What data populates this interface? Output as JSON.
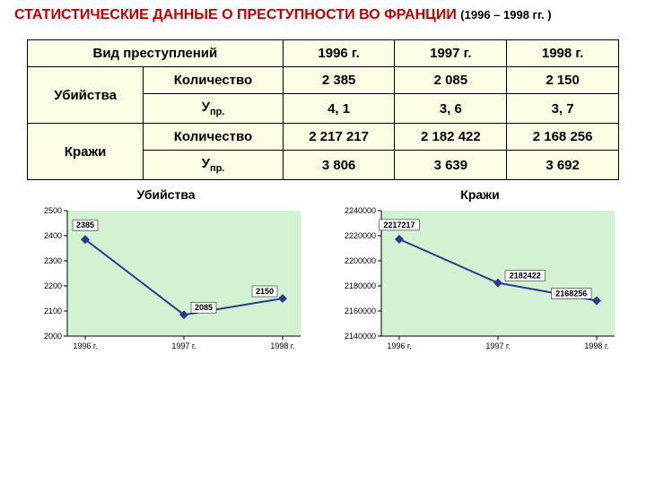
{
  "title_main": "СТАТИСТИЧЕСКИЕ ДАННЫЕ О ПРЕСТУПНОСТИ ВО ФРАНЦИИ",
  "title_years": "(1996 – 1998 гг. )",
  "table": {
    "header_crime_type": "Вид преступлений",
    "years": [
      "1996 г.",
      "1997 г.",
      "1998 г."
    ],
    "row_group_1": "Убийства",
    "row_group_2": "Кражи",
    "row_qty": "Количество",
    "row_u": "У",
    "row_u_sub": "пр.",
    "murders_count": [
      "2 385",
      "2 085",
      "2 150"
    ],
    "murders_u": [
      "4, 1",
      "3, 6",
      "3, 7"
    ],
    "thefts_count": [
      "2 217 217",
      "2 182 422",
      "2 168 256"
    ],
    "thefts_u": [
      "3 806",
      "3 639",
      "3 692"
    ]
  },
  "chart1": {
    "title": "Убийства",
    "background": "#d2f2d2",
    "line_color": "#2a3b8f",
    "x_labels": [
      "1996 г.",
      "1997 г.",
      "1998 г."
    ],
    "y_ticks": [
      2000,
      2100,
      2200,
      2300,
      2400,
      2500
    ],
    "ylim": [
      2000,
      2500
    ],
    "values": [
      2385,
      2085,
      2150
    ],
    "point_labels": [
      "2385",
      "2085",
      "2150"
    ],
    "marker_size": 5
  },
  "chart2": {
    "title": "Кражи",
    "background": "#d2f2d2",
    "line_color": "#2a3b8f",
    "x_labels": [
      "1996 г.",
      "1997 г.",
      "1998 г."
    ],
    "y_ticks": [
      2140000,
      2160000,
      2180000,
      2200000,
      2220000,
      2240000
    ],
    "ylim": [
      2140000,
      2240000
    ],
    "values": [
      2217217,
      2182422,
      2168256
    ],
    "point_labels": [
      "2217217",
      "2182422",
      "2168256"
    ],
    "marker_size": 5
  }
}
